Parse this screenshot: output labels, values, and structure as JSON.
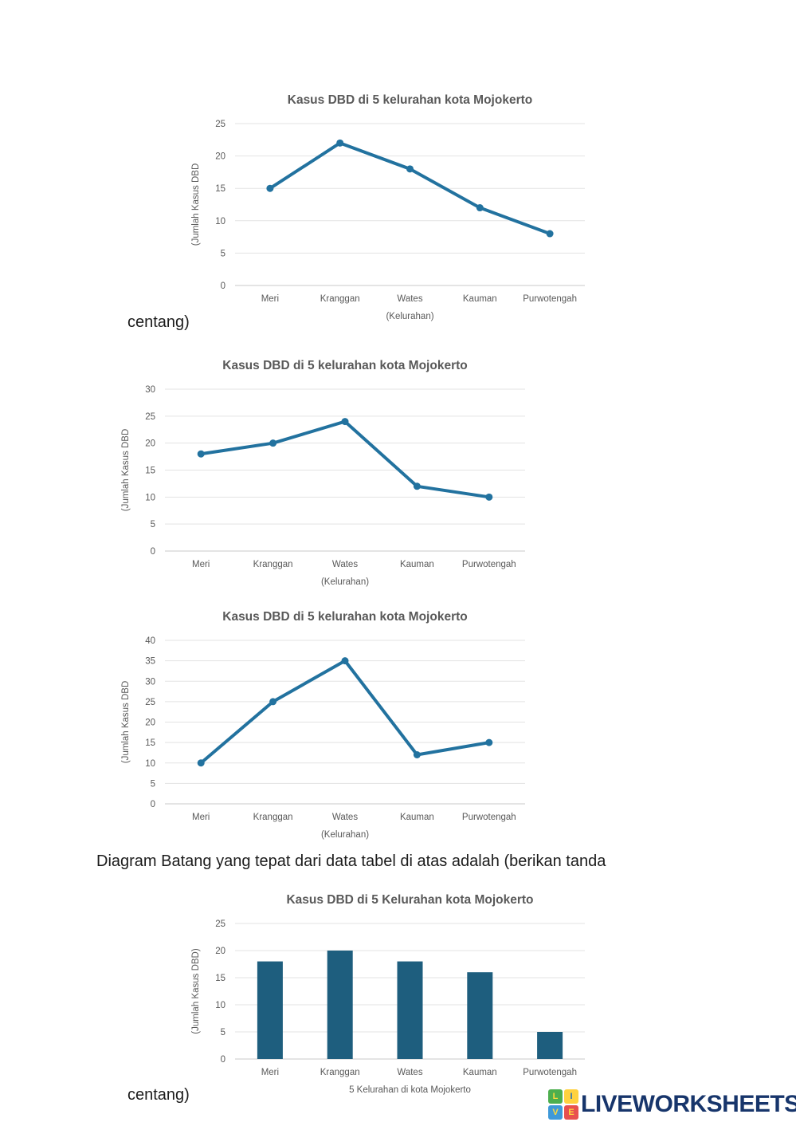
{
  "page": {
    "centang_top": "centang)",
    "question": "Diagram Batang yang tepat dari data tabel di atas adalah (berikan tanda",
    "centang_bottom": "centang)"
  },
  "branding": {
    "logo_text": "LIVEWORKSHEETS",
    "logo_color": "#17356b",
    "logo_grid": [
      {
        "letter": "L",
        "bg": "#4daf4e",
        "fg": "#ffd93b"
      },
      {
        "letter": "I",
        "bg": "#ffd23f",
        "fg": "#2d6fb5"
      },
      {
        "letter": "V",
        "bg": "#3f99d8",
        "fg": "#ffd93b"
      },
      {
        "letter": "E",
        "bg": "#e8504f",
        "fg": "#ffd93b"
      }
    ]
  },
  "colors": {
    "line": "#22729f",
    "bar": "#1e5e7e",
    "grid": "#e3e3e3",
    "axis": "#c8c8c8",
    "chart_text": "#595959"
  },
  "chart_data": [
    {
      "type": "line",
      "title": "Kasus DBD di 5 kelurahan kota Mojokerto",
      "categories": [
        "Meri",
        "Kranggan",
        "Wates",
        "Kauman",
        "Purwotengah"
      ],
      "values": [
        15,
        22,
        18,
        12,
        8
      ],
      "xlabel": "(Kelurahan)",
      "ylabel": "(Jumlah Kasus DBD",
      "ylim": [
        0,
        25
      ],
      "ytick_step": 5,
      "grid": true,
      "legend": "none"
    },
    {
      "type": "line",
      "title": "Kasus DBD di 5 kelurahan kota Mojokerto",
      "categories": [
        "Meri",
        "Kranggan",
        "Wates",
        "Kauman",
        "Purwotengah"
      ],
      "values": [
        18,
        20,
        24,
        12,
        10
      ],
      "xlabel": "(Kelurahan)",
      "ylabel": "(Jumlah Kasus DBD",
      "ylim": [
        0,
        30
      ],
      "ytick_step": 5,
      "grid": true,
      "legend": "none"
    },
    {
      "type": "line",
      "title": "Kasus DBD di 5 kelurahan kota Mojokerto",
      "categories": [
        "Meri",
        "Kranggan",
        "Wates",
        "Kauman",
        "Purwotengah"
      ],
      "values": [
        10,
        25,
        35,
        12,
        15
      ],
      "xlabel": "(Kelurahan)",
      "ylabel": "(Jumlah Kasus DBD",
      "ylim": [
        0,
        40
      ],
      "ytick_step": 5,
      "grid": true,
      "legend": "none"
    },
    {
      "type": "bar",
      "title": "Kasus DBD di 5 Kelurahan kota Mojokerto",
      "categories": [
        "Meri",
        "Kranggan",
        "Wates",
        "Kauman",
        "Purwotengah"
      ],
      "values": [
        18,
        20,
        18,
        16,
        5
      ],
      "xlabel": "5 Kelurahan di kota Mojokerto",
      "ylabel": "(Jumlah Kasus DBD)",
      "ylim": [
        0,
        25
      ],
      "ytick_step": 5,
      "grid": true,
      "legend": "none"
    }
  ]
}
